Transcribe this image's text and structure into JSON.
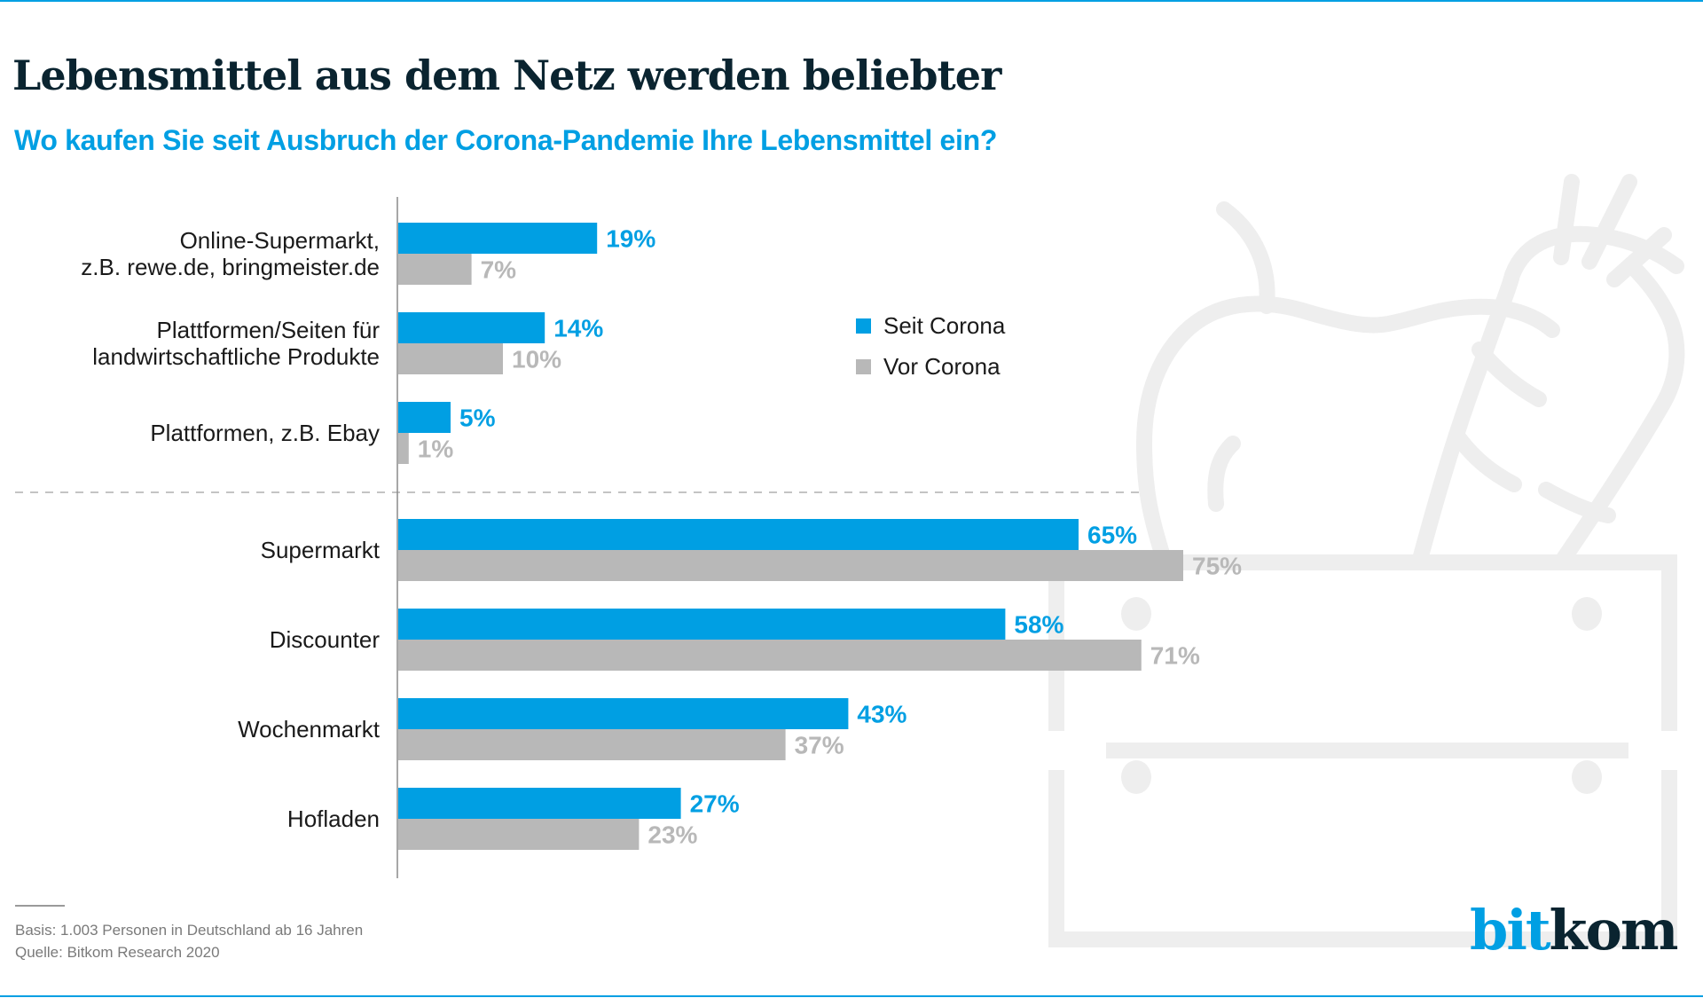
{
  "header": {
    "title": "Lebensmittel aus dem Netz werden beliebter",
    "subtitle": "Wo kaufen Sie seit Ausbruch der Corona-Pandemie Ihre Lebensmittel ein?"
  },
  "colors": {
    "accent": "#009fe3",
    "seit_corona": "#009fe3",
    "vor_corona": "#b8b8b8",
    "title": "#0a2430",
    "illustration": "#eeeeee"
  },
  "legend": {
    "items": [
      {
        "label": "Seit Corona",
        "color": "#009fe3"
      },
      {
        "label": "Vor Corona",
        "color": "#b8b8b8"
      }
    ]
  },
  "footer": {
    "basis": "Basis: 1.003 Personen in Deutschland ab 16 Jahren",
    "source": "Quelle: Bitkom Research 2020"
  },
  "logo": {
    "part1": "bit",
    "part2": "kom"
  },
  "illustration": {
    "icon": "apple-carrot-crate-icon"
  },
  "chart_data": {
    "type": "bar",
    "orientation": "horizontal",
    "title": "Lebensmittel aus dem Netz werden beliebter",
    "subtitle": "Wo kaufen Sie seit Ausbruch der Corona-Pandemie Ihre Lebensmittel ein?",
    "xlabel": "",
    "ylabel": "",
    "xlim": [
      0,
      100
    ],
    "unit": "%",
    "grid": false,
    "legend_position": "top-right",
    "categories": [
      [
        "Online-Supermarkt,",
        "z.B. rewe.de, bringmeister.de"
      ],
      [
        "Plattformen/Seiten für",
        "landwirtschaftliche Produkte"
      ],
      [
        "Plattformen, z.B. Ebay"
      ],
      [
        "Supermarkt"
      ],
      [
        "Discounter"
      ],
      [
        "Wochenmarkt"
      ],
      [
        "Hofladen"
      ]
    ],
    "separator_after_index": 2,
    "series": [
      {
        "name": "Seit Corona",
        "color": "#009fe3",
        "values": [
          19,
          14,
          5,
          65,
          58,
          43,
          27
        ]
      },
      {
        "name": "Vor Corona",
        "color": "#b8b8b8",
        "values": [
          7,
          10,
          1,
          75,
          71,
          37,
          23
        ]
      }
    ]
  }
}
